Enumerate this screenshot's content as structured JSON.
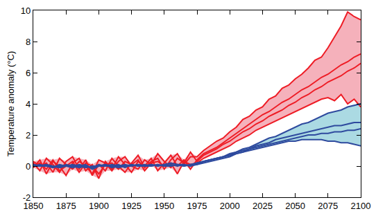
{
  "chart_data": {
    "type": "line",
    "y_label": "Temperature anomaly (°C)",
    "xlim": [
      1850,
      2100
    ],
    "xticks": [
      1850,
      1875,
      1900,
      1925,
      1950,
      1975,
      2000,
      2025,
      2050,
      2075,
      2100
    ],
    "ylim": [
      -2,
      10
    ],
    "yticks": [
      -2,
      0,
      2,
      4,
      6,
      8,
      10
    ],
    "grid": false,
    "x": [
      1850,
      1855,
      1860,
      1865,
      1870,
      1875,
      1880,
      1885,
      1890,
      1895,
      1900,
      1905,
      1910,
      1915,
      1920,
      1925,
      1930,
      1935,
      1940,
      1945,
      1950,
      1955,
      1960,
      1965,
      1970,
      1975,
      1980,
      1985,
      1990,
      1995,
      2000,
      2005,
      2010,
      2015,
      2020,
      2025,
      2030,
      2035,
      2040,
      2045,
      2050,
      2055,
      2060,
      2065,
      2070,
      2075,
      2080,
      2085,
      2090,
      2095,
      2100
    ],
    "series": [
      {
        "color": "#ee1c25",
        "values": [
          0.2,
          -0.3,
          0.5,
          0.1,
          -0.4,
          0.3,
          0.6,
          -0.2,
          0.4,
          -0.6,
          0.1,
          -0.3,
          0.5,
          0.0,
          -0.4,
          0.2,
          0.7,
          -0.1,
          0.3,
          0.5,
          -0.2,
          0.4,
          0.8,
          0.1,
          0.6,
          0.6,
          1.0,
          1.3,
          1.6,
          1.8,
          2.2,
          2.5,
          3.0,
          3.2,
          3.6,
          3.8,
          4.3,
          4.5,
          5.0,
          5.2,
          5.6,
          5.9,
          6.3,
          6.8,
          7.0,
          7.6,
          8.3,
          9.0,
          9.9,
          9.6,
          9.4
        ]
      },
      {
        "color": "#ee1c25",
        "values": [
          -0.1,
          0.4,
          -0.5,
          0.3,
          0.0,
          -0.6,
          0.2,
          0.5,
          -0.3,
          0.1,
          -0.8,
          0.3,
          -0.2,
          0.6,
          0.1,
          -0.4,
          0.3,
          0.0,
          0.5,
          -0.3,
          0.2,
          0.7,
          0.0,
          0.4,
          -0.2,
          0.4,
          0.8,
          1.0,
          1.2,
          1.5,
          1.8,
          2.1,
          2.4,
          2.7,
          3.0,
          3.3,
          3.5,
          3.8,
          4.1,
          4.3,
          4.6,
          4.9,
          5.1,
          5.4,
          5.7,
          5.9,
          6.2,
          6.5,
          6.7,
          7.0,
          7.2
        ]
      },
      {
        "color": "#ee1c25",
        "values": [
          0.3,
          0.0,
          0.2,
          -0.4,
          0.5,
          0.1,
          -0.2,
          0.3,
          0.0,
          -0.5,
          0.4,
          0.2,
          -0.3,
          0.3,
          0.6,
          0.0,
          -0.2,
          0.4,
          0.1,
          0.8,
          0.3,
          -0.1,
          0.5,
          0.2,
          0.9,
          0.3,
          0.7,
          0.9,
          1.1,
          1.4,
          1.6,
          1.9,
          2.2,
          2.4,
          2.7,
          2.9,
          3.2,
          3.4,
          3.6,
          3.9,
          4.1,
          4.4,
          4.6,
          4.9,
          5.1,
          5.4,
          5.6,
          5.8,
          6.1,
          6.3,
          6.6
        ]
      },
      {
        "color": "#ee1c25",
        "values": [
          0.0,
          0.2,
          -0.2,
          0.4,
          -0.3,
          0.0,
          0.3,
          -0.4,
          0.2,
          0.0,
          -0.5,
          0.1,
          0.2,
          -0.2,
          0.3,
          0.1,
          0.4,
          -0.3,
          0.2,
          0.3,
          0.0,
          0.2,
          -0.5,
          0.3,
          0.1,
          0.2,
          0.5,
          0.7,
          0.9,
          1.1,
          1.3,
          1.6,
          1.8,
          2.0,
          2.3,
          2.5,
          2.7,
          2.9,
          3.1,
          3.3,
          3.5,
          3.7,
          3.9,
          4.1,
          4.3,
          4.4,
          4.2,
          4.6,
          4.0,
          4.3,
          3.8
        ]
      },
      {
        "color": "#2e4a9e",
        "values": [
          0.0,
          0.1,
          0.0,
          -0.1,
          0.1,
          0.0,
          -0.1,
          0.0,
          0.1,
          -0.2,
          0.0,
          0.1,
          -0.1,
          0.0,
          0.1,
          0.0,
          0.1,
          0.0,
          0.1,
          0.0,
          0.1,
          0.2,
          0.1,
          0.0,
          0.1,
          0.2,
          0.3,
          0.4,
          0.5,
          0.6,
          0.8,
          0.9,
          1.1,
          1.2,
          1.4,
          1.6,
          1.8,
          1.9,
          2.1,
          2.3,
          2.5,
          2.7,
          2.8,
          3.0,
          3.2,
          3.4,
          3.5,
          3.6,
          3.8,
          3.9,
          4.0
        ]
      },
      {
        "color": "#2e4a9e",
        "values": [
          0.1,
          0.0,
          0.1,
          0.0,
          -0.1,
          0.1,
          0.0,
          -0.1,
          0.0,
          -0.1,
          0.1,
          0.0,
          0.0,
          0.1,
          -0.1,
          0.1,
          0.0,
          0.1,
          0.0,
          0.1,
          0.0,
          0.1,
          0.0,
          0.1,
          0.0,
          0.2,
          0.3,
          0.4,
          0.5,
          0.6,
          0.7,
          0.9,
          1.0,
          1.1,
          1.3,
          1.4,
          1.5,
          1.7,
          1.8,
          1.9,
          2.0,
          2.1,
          2.2,
          2.3,
          2.4,
          2.5,
          2.6,
          2.6,
          2.7,
          2.8,
          2.8
        ]
      },
      {
        "color": "#2e4a9e",
        "values": [
          0.0,
          0.0,
          0.1,
          -0.1,
          0.0,
          0.0,
          0.1,
          0.0,
          -0.1,
          0.0,
          0.0,
          0.1,
          0.0,
          -0.1,
          0.0,
          0.1,
          0.0,
          0.0,
          0.1,
          0.0,
          0.1,
          0.0,
          0.1,
          0.0,
          0.1,
          0.1,
          0.3,
          0.4,
          0.5,
          0.6,
          0.7,
          0.8,
          0.9,
          1.1,
          1.2,
          1.3,
          1.4,
          1.5,
          1.6,
          1.7,
          1.8,
          1.9,
          2.0,
          2.0,
          2.1,
          2.1,
          2.2,
          2.2,
          2.3,
          2.3,
          2.4
        ]
      },
      {
        "color": "#2e4a9e",
        "values": [
          0.1,
          0.0,
          0.0,
          0.0,
          -0.1,
          0.0,
          0.0,
          0.1,
          0.0,
          -0.1,
          0.0,
          0.0,
          0.1,
          0.0,
          0.0,
          0.0,
          0.1,
          0.0,
          0.0,
          0.1,
          0.0,
          0.0,
          0.1,
          0.1,
          0.0,
          0.1,
          0.2,
          0.3,
          0.4,
          0.5,
          0.6,
          0.8,
          0.9,
          1.0,
          1.1,
          1.2,
          1.3,
          1.4,
          1.5,
          1.6,
          1.6,
          1.7,
          1.7,
          1.7,
          1.7,
          1.6,
          1.6,
          1.5,
          1.5,
          1.4,
          1.3
        ]
      }
    ]
  }
}
